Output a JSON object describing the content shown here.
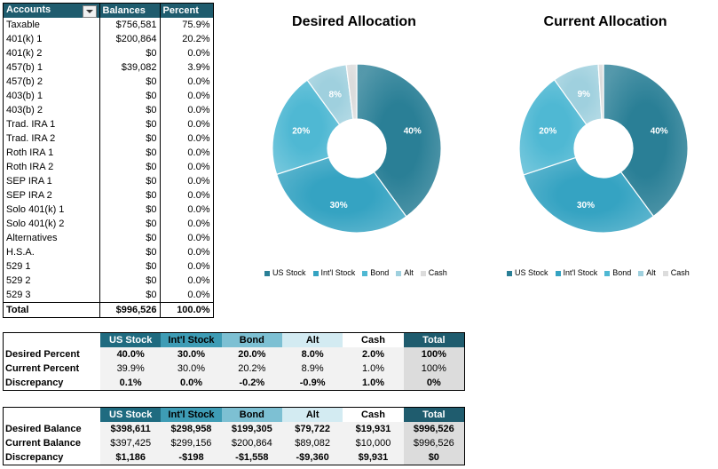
{
  "accounts": {
    "headers": [
      "Accounts",
      "Balances",
      "Percent"
    ],
    "rows": [
      {
        "name": "Taxable",
        "balance": "$756,581",
        "percent": "75.9%"
      },
      {
        "name": "401(k) 1",
        "balance": "$200,864",
        "percent": "20.2%"
      },
      {
        "name": "401(k) 2",
        "balance": "$0",
        "percent": "0.0%"
      },
      {
        "name": "457(b) 1",
        "balance": "$39,082",
        "percent": "3.9%"
      },
      {
        "name": "457(b) 2",
        "balance": "$0",
        "percent": "0.0%"
      },
      {
        "name": "403(b) 1",
        "balance": "$0",
        "percent": "0.0%"
      },
      {
        "name": "403(b) 2",
        "balance": "$0",
        "percent": "0.0%"
      },
      {
        "name": "Trad. IRA 1",
        "balance": "$0",
        "percent": "0.0%"
      },
      {
        "name": "Trad. IRA 2",
        "balance": "$0",
        "percent": "0.0%"
      },
      {
        "name": "Roth IRA 1",
        "balance": "$0",
        "percent": "0.0%"
      },
      {
        "name": "Roth IRA 2",
        "balance": "$0",
        "percent": "0.0%"
      },
      {
        "name": "SEP IRA 1",
        "balance": "$0",
        "percent": "0.0%"
      },
      {
        "name": "SEP IRA 2",
        "balance": "$0",
        "percent": "0.0%"
      },
      {
        "name": "Solo 401(k) 1",
        "balance": "$0",
        "percent": "0.0%"
      },
      {
        "name": "Solo 401(k) 2",
        "balance": "$0",
        "percent": "0.0%"
      },
      {
        "name": "Alternatives",
        "balance": "$0",
        "percent": "0.0%"
      },
      {
        "name": "H.S.A.",
        "balance": "$0",
        "percent": "0.0%"
      },
      {
        "name": "529 1",
        "balance": "$0",
        "percent": "0.0%"
      },
      {
        "name": "529 2",
        "balance": "$0",
        "percent": "0.0%"
      },
      {
        "name": "529 3",
        "balance": "$0",
        "percent": "0.0%"
      }
    ],
    "total": {
      "name": "Total",
      "balance": "$996,526",
      "percent": "100.0%"
    }
  },
  "percent_table": {
    "headers": [
      "US Stock",
      "Int'l Stock",
      "Bond",
      "Alt",
      "Cash",
      "Total"
    ],
    "rows": [
      {
        "label": "Desired Percent",
        "values": [
          "40.0%",
          "30.0%",
          "20.0%",
          "8.0%",
          "2.0%",
          "100%"
        ]
      },
      {
        "label": "Current Percent",
        "values": [
          "39.9%",
          "30.0%",
          "20.2%",
          "8.9%",
          "1.0%",
          "100%"
        ]
      },
      {
        "label": "Discrepancy",
        "values": [
          "0.1%",
          "0.0%",
          "-0.2%",
          "-0.9%",
          "1.0%",
          "0%"
        ]
      }
    ]
  },
  "balance_table": {
    "headers": [
      "US Stock",
      "Int'l Stock",
      "Bond",
      "Alt",
      "Cash",
      "Total"
    ],
    "rows": [
      {
        "label": "Desired Balance",
        "values": [
          "$398,611",
          "$298,958",
          "$199,305",
          "$79,722",
          "$19,931",
          "$996,526"
        ]
      },
      {
        "label": "Current Balance",
        "values": [
          "$397,425",
          "$299,156",
          "$200,864",
          "$89,082",
          "$10,000",
          "$996,526"
        ]
      },
      {
        "label": "Discrepancy",
        "values": [
          "$1,186",
          "-$198",
          "-$1,558",
          "-$9,360",
          "$9,931",
          "$0"
        ]
      }
    ]
  },
  "colors": {
    "us": "#2a7f96",
    "intl": "#35a3c2",
    "bond": "#4fb8d3",
    "alt": "#9fd0de",
    "cash": "#dcdcdc"
  },
  "chart_data": [
    {
      "type": "pie",
      "title": "Desired Allocation",
      "categories": [
        "US Stock",
        "Int'l Stock",
        "Bond",
        "Alt",
        "Cash"
      ],
      "values": [
        40,
        30,
        20,
        8,
        2
      ],
      "data_labels": [
        "40%",
        "30%",
        "20%",
        "8%",
        ""
      ],
      "legend": "bottom"
    },
    {
      "type": "pie",
      "title": "Current Allocation",
      "categories": [
        "US Stock",
        "Int'l Stock",
        "Bond",
        "Alt",
        "Cash"
      ],
      "values": [
        39.9,
        30.0,
        20.2,
        8.9,
        1.0
      ],
      "data_labels": [
        "40%",
        "30%",
        "20%",
        "9%",
        ""
      ],
      "legend": "bottom"
    }
  ]
}
